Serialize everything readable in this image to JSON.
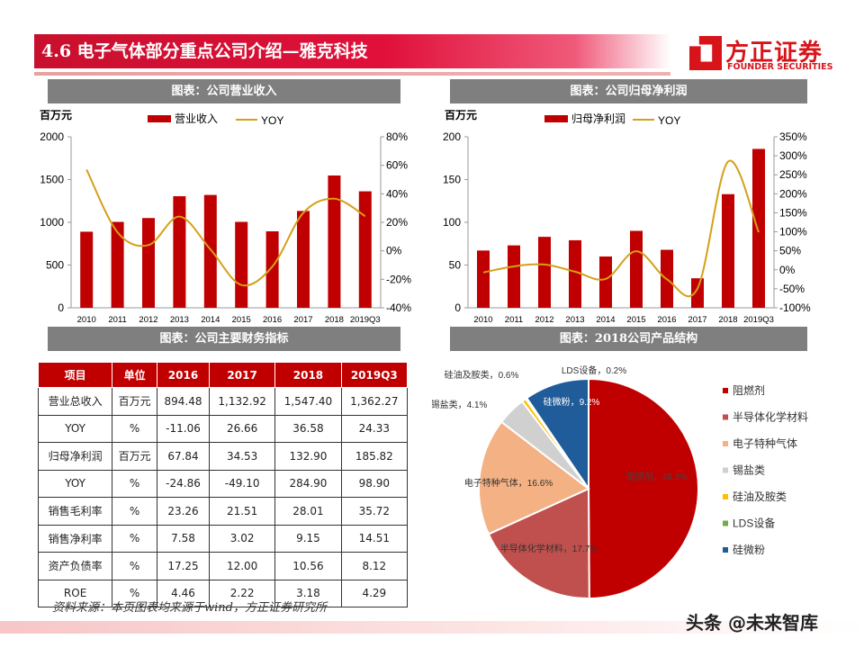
{
  "header": {
    "title": "4.6 电子气体部分重点公司介绍—雅克科技",
    "logo_cn": "方正证券",
    "logo_en": "FOUNDER SECURITIES"
  },
  "panels": {
    "p1": "图表：公司营业收入",
    "p2": "图表：公司归母净利润",
    "p3": "图表：公司主要财务指标",
    "p4": "图表：2018公司产品结构"
  },
  "colors": {
    "bar": "#c00000",
    "line": "#d4a017"
  },
  "chart_data": [
    {
      "type": "bar+line",
      "unit_label": "百万元",
      "categories": [
        "2010",
        "2011",
        "2012",
        "2013",
        "2014",
        "2015",
        "2016",
        "2017",
        "2018",
        "2019Q3"
      ],
      "series": [
        {
          "name": "营业收入",
          "axis": "left",
          "values": [
            890,
            1005,
            1050,
            1305,
            1320,
            1005,
            894.48,
            1132.92,
            1547.4,
            1362.27
          ]
        },
        {
          "name": "YOY",
          "axis": "right",
          "values": [
            57,
            13,
            4,
            24,
            1,
            -24,
            -11.06,
            26.66,
            36.58,
            24.33
          ]
        }
      ],
      "ylim": [
        0,
        2000
      ],
      "yticks": [
        "0",
        "500",
        "1000",
        "1500",
        "2000"
      ],
      "y2lim": [
        -40,
        80
      ],
      "y2ticks": [
        "-40%",
        "-20%",
        "0%",
        "20%",
        "40%",
        "60%",
        "80%"
      ]
    },
    {
      "type": "bar+line",
      "unit_label": "百万元",
      "categories": [
        "2010",
        "2011",
        "2012",
        "2013",
        "2014",
        "2015",
        "2016",
        "2017",
        "2018",
        "2019Q3"
      ],
      "series": [
        {
          "name": "归母净利润",
          "axis": "left",
          "values": [
            67,
            73,
            83,
            79,
            60,
            90,
            67.84,
            34.53,
            132.9,
            185.82
          ]
        },
        {
          "name": "YOY",
          "axis": "right",
          "values": [
            -7,
            9,
            14,
            -5,
            -24,
            49,
            -24.86,
            -49.1,
            284.9,
            98.9
          ]
        }
      ],
      "ylim": [
        0,
        200
      ],
      "yticks": [
        "0",
        "50",
        "100",
        "150",
        "200"
      ],
      "y2lim": [
        -100,
        350
      ],
      "y2ticks": [
        "-100%",
        "-50%",
        "0%",
        "50%",
        "100%",
        "150%",
        "200%",
        "250%",
        "300%",
        "350%"
      ]
    },
    {
      "type": "pie",
      "slices": [
        {
          "name": "阻燃剂",
          "label": "阻燃剂，48.2%",
          "value": 48.2,
          "color": "#c00000"
        },
        {
          "name": "半导体化学材料",
          "label": "半导体化学材料，17.7%",
          "value": 17.7,
          "color": "#c0504d"
        },
        {
          "name": "电子特种气体",
          "label": "电子特种气体，16.6%",
          "value": 16.6,
          "color": "#f4b183"
        },
        {
          "name": "锡盐类",
          "label": "锡盐类，4.1%",
          "value": 4.1,
          "color": "#d0d0d0"
        },
        {
          "name": "硅油及胺类",
          "label": "硅油及胺类，0.6%",
          "value": 0.6,
          "color": "#ffc000"
        },
        {
          "name": "LDS设备",
          "label": "LDS设备，0.2%",
          "value": 0.2,
          "color": "#70ad47"
        },
        {
          "name": "硅微粉",
          "label": "硅微粉，9.2%",
          "value": 9.2,
          "color": "#1f5c99"
        }
      ],
      "legend": "right"
    }
  ],
  "table": {
    "headers": [
      "项目",
      "单位",
      "2016",
      "2017",
      "2018",
      "2019Q3"
    ],
    "rows": [
      [
        "营业总收入",
        "百万元",
        "894.48",
        "1,132.92",
        "1,547.40",
        "1,362.27"
      ],
      [
        "YOY",
        "%",
        "-11.06",
        "26.66",
        "36.58",
        "24.33"
      ],
      [
        "归母净利润",
        "百万元",
        "67.84",
        "34.53",
        "132.90",
        "185.82"
      ],
      [
        "YOY",
        "%",
        "-24.86",
        "-49.10",
        "284.90",
        "98.90"
      ],
      [
        "销售毛利率",
        "%",
        "23.26",
        "21.51",
        "28.01",
        "35.72"
      ],
      [
        "销售净利率",
        "%",
        "7.58",
        "3.02",
        "9.15",
        "14.51"
      ],
      [
        "资产负债率",
        "%",
        "17.25",
        "12.00",
        "10.56",
        "8.12"
      ],
      [
        "ROE",
        "%",
        "4.46",
        "2.22",
        "3.18",
        "4.29"
      ]
    ]
  },
  "source": "资料来源：本页图表均来源于wind，方正证券研究所",
  "watermark": "头条 @未来智库"
}
